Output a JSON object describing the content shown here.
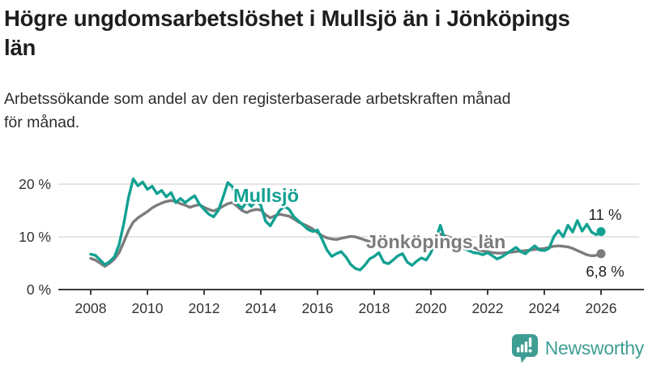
{
  "header": {
    "title_line1": "Högre ungdomsarbetslöshet i Mullsjö än i Jönköpings",
    "title_line2": "län",
    "subtitle_line1": "Arbetssökande som andel av den registerbaserade arbetskraften månad",
    "subtitle_line2": "för månad."
  },
  "chart_data": {
    "type": "line",
    "title": "Högre ungdomsarbetslöshet i Mullsjö än i Jönköpings län",
    "subtitle": "Arbetssökande som andel av den registerbaserade arbetskraften månad för månad.",
    "x_unit": "year (monthly data)",
    "x_start": 2008,
    "x_step_years": 0.1666667,
    "x_ticks": [
      "2008",
      "2010",
      "2012",
      "2014",
      "2016",
      "2018",
      "2020",
      "2022",
      "2024",
      "2026"
    ],
    "y_ticks": [
      "0 %",
      "10 %",
      "20 %"
    ],
    "ylim": [
      0,
      22
    ],
    "xlim": [
      2008,
      2026
    ],
    "grid": "horizontal",
    "legend": "inline-labels",
    "series": [
      {
        "name": "Jönköpings län",
        "color": "#7c7c7c",
        "values": [
          5.9,
          5.6,
          5.0,
          4.4,
          5.0,
          5.8,
          7.0,
          9.0,
          11.2,
          12.8,
          13.6,
          14.2,
          14.8,
          15.5,
          16.0,
          16.4,
          16.7,
          16.9,
          16.7,
          16.3,
          16.0,
          15.6,
          15.9,
          16.1,
          15.6,
          15.2,
          14.9,
          15.3,
          15.8,
          16.3,
          16.5,
          15.8,
          15.0,
          14.6,
          15.0,
          15.2,
          15.1,
          14.2,
          13.6,
          14.0,
          14.3,
          14.1,
          13.9,
          13.4,
          12.8,
          12.4,
          12.0,
          11.5,
          10.8,
          10.2,
          9.8,
          9.6,
          9.5,
          9.7,
          9.9,
          10.1,
          10.0,
          9.7,
          9.4,
          9.1,
          8.9,
          8.7,
          8.6,
          8.5,
          8.5,
          8.6,
          8.6,
          8.5,
          8.3,
          8.4,
          8.6,
          8.8,
          9.2,
          10.0,
          10.5,
          10.2,
          9.9,
          9.6,
          9.2,
          8.8,
          8.4,
          8.0,
          7.6,
          7.3,
          7.2,
          7.0,
          6.9,
          6.9,
          7.0,
          7.1,
          7.2,
          7.3,
          7.4,
          7.5,
          7.6,
          7.7,
          7.8,
          8.0,
          8.2,
          8.3,
          8.2,
          8.1,
          7.8,
          7.4,
          7.0,
          6.6,
          6.4,
          6.5,
          6.8
        ]
      },
      {
        "name": "Mullsjö",
        "color": "#12a192",
        "values": [
          6.7,
          6.5,
          5.6,
          4.7,
          5.3,
          6.2,
          8.5,
          12.5,
          17.5,
          21.0,
          19.7,
          20.4,
          19.0,
          19.6,
          18.2,
          18.8,
          17.6,
          18.4,
          16.5,
          17.3,
          16.5,
          17.2,
          17.8,
          16.2,
          15.2,
          14.3,
          13.8,
          15.0,
          17.5,
          20.3,
          19.5,
          16.3,
          15.4,
          16.6,
          15.8,
          16.8,
          16.0,
          13.0,
          12.1,
          13.6,
          15.0,
          15.8,
          15.2,
          13.8,
          13.0,
          12.2,
          11.4,
          11.0,
          11.3,
          9.5,
          7.5,
          6.3,
          6.8,
          7.2,
          6.2,
          4.8,
          4.0,
          3.7,
          4.6,
          5.8,
          6.3,
          7.0,
          5.2,
          4.9,
          5.6,
          6.4,
          6.8,
          5.2,
          4.6,
          5.4,
          6.0,
          5.6,
          7.0,
          9.5,
          12.2,
          9.3,
          8.4,
          8.8,
          8.2,
          7.8,
          7.4,
          7.0,
          6.9,
          6.6,
          7.0,
          6.4,
          5.8,
          6.2,
          6.8,
          7.4,
          8.0,
          7.2,
          6.8,
          7.6,
          8.3,
          7.5,
          7.4,
          7.8,
          10.0,
          11.2,
          10.0,
          12.2,
          10.9,
          13.1,
          11.1,
          12.4,
          10.9,
          10.4,
          11.0
        ]
      }
    ],
    "end_labels": [
      {
        "series": "Mullsjö",
        "text": "11 %"
      },
      {
        "series": "Jönköpings län",
        "text": "6,8 %"
      }
    ]
  },
  "footer": {
    "brand": "Newsworthy"
  }
}
